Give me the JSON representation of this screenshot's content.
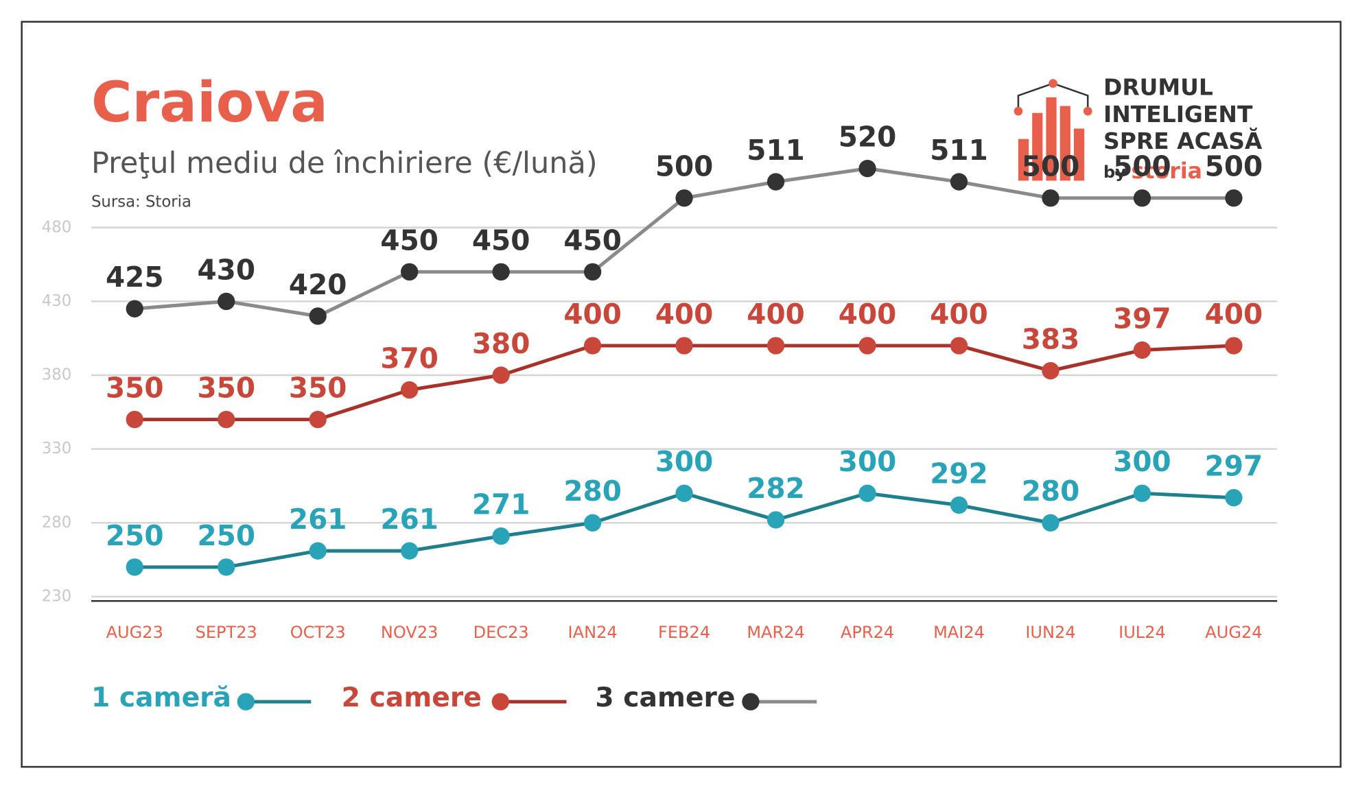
{
  "chart_data": {
    "type": "line",
    "title": "Craiova",
    "subtitle": "Preţul mediu de închiriere (€/lună)",
    "source": "Sursa: Storia",
    "categories": [
      "AUG23",
      "SEPT23",
      "OCT23",
      "NOV23",
      "DEC23",
      "IAN24",
      "FEB24",
      "MAR24",
      "APR24",
      "MAI24",
      "IUN24",
      "IUL24",
      "AUG24"
    ],
    "series": [
      {
        "name": "1 cameră",
        "color": "#1f7f8c",
        "marker_color": "#29a3b8",
        "values": [
          250,
          250,
          261,
          261,
          271,
          280,
          300,
          282,
          300,
          292,
          280,
          300,
          297
        ]
      },
      {
        "name": "2 camere",
        "color": "#a8322a",
        "marker_color": "#c8463a",
        "values": [
          350,
          350,
          350,
          370,
          380,
          400,
          400,
          400,
          400,
          400,
          383,
          397,
          400
        ]
      },
      {
        "name": "3 camere",
        "color": "#8a8a8a",
        "marker_color": "#333333",
        "values": [
          425,
          430,
          420,
          450,
          450,
          450,
          500,
          511,
          520,
          511,
          500,
          500,
          500
        ]
      }
    ],
    "ylim": [
      230,
      530
    ],
    "yticks": [
      230,
      280,
      330,
      380,
      430,
      480
    ],
    "grid": true
  },
  "logo": {
    "lines": [
      "DRUMUL",
      "INTELIGENT",
      "SPRE ACASĂ"
    ],
    "by": "by",
    "brand": "storia"
  }
}
